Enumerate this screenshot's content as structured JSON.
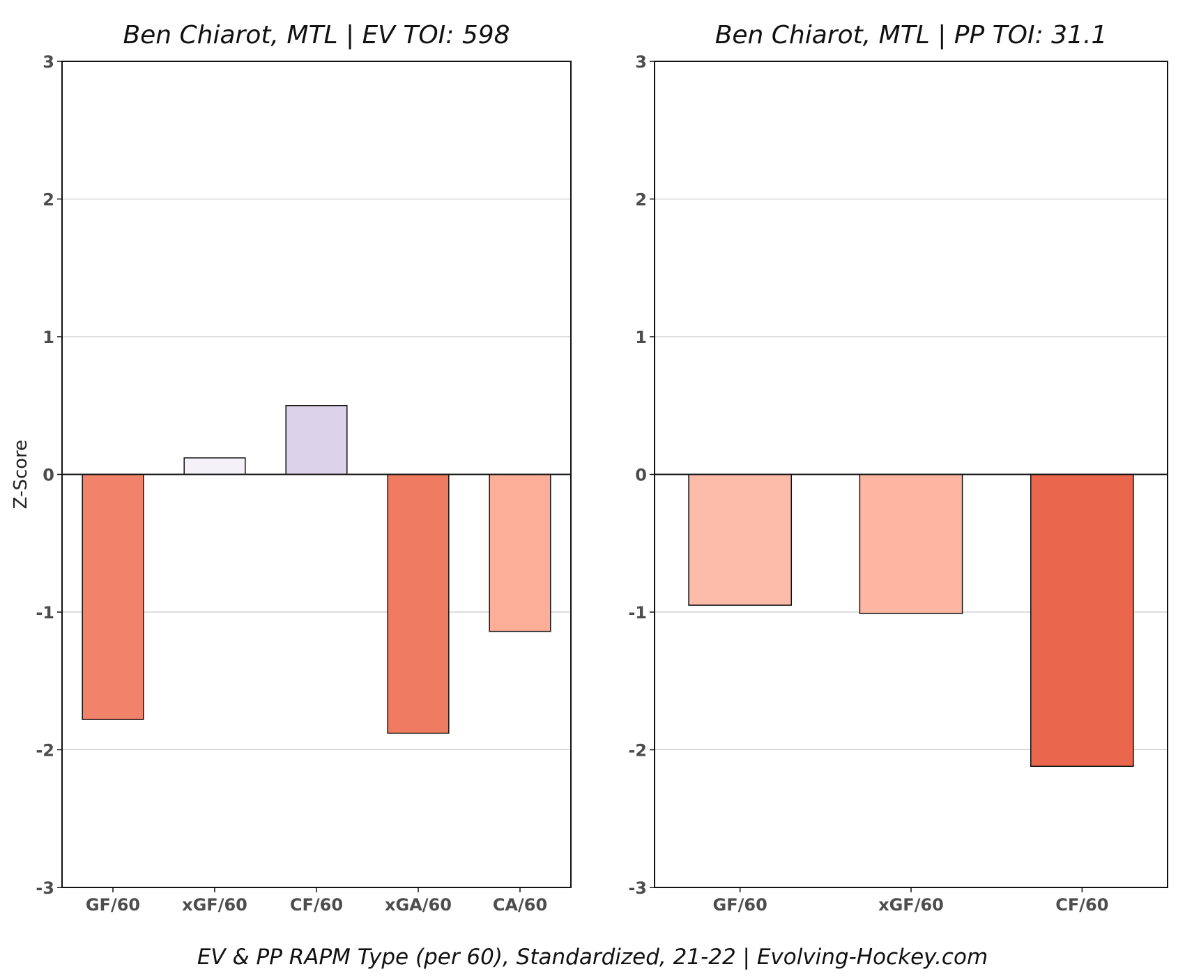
{
  "caption": "EV & PP RAPM Type (per 60), Standardized, 21-22    |    Evolving-Hockey.com",
  "chart_data": [
    {
      "type": "bar",
      "title": "Ben Chiarot, MTL  |  EV TOI: 598",
      "ylabel": "Z-Score",
      "xlabel": "",
      "ylim": [
        -3,
        3
      ],
      "yticks": [
        -3,
        -2,
        -1,
        0,
        1,
        2,
        3
      ],
      "grid": true,
      "categories": [
        "GF/60",
        "xGF/60",
        "CF/60",
        "xGA/60",
        "CA/60"
      ],
      "values": [
        -1.78,
        0.12,
        0.5,
        -1.88,
        -1.14
      ],
      "colors": [
        "#f2836b",
        "#f4f2f8",
        "#dcd2ea",
        "#ef7c60",
        "#fcae98"
      ]
    },
    {
      "type": "bar",
      "title": "Ben Chiarot, MTL  |  PP TOI: 31.1",
      "ylabel": "",
      "xlabel": "",
      "ylim": [
        -3,
        3
      ],
      "yticks": [
        -3,
        -2,
        -1,
        0,
        1,
        2,
        3
      ],
      "grid": true,
      "categories": [
        "GF/60",
        "xGF/60",
        "CF/60"
      ],
      "values": [
        -0.95,
        -1.01,
        -2.12
      ],
      "colors": [
        "#fdbbaa",
        "#fcb6a2",
        "#ea674d"
      ]
    }
  ]
}
